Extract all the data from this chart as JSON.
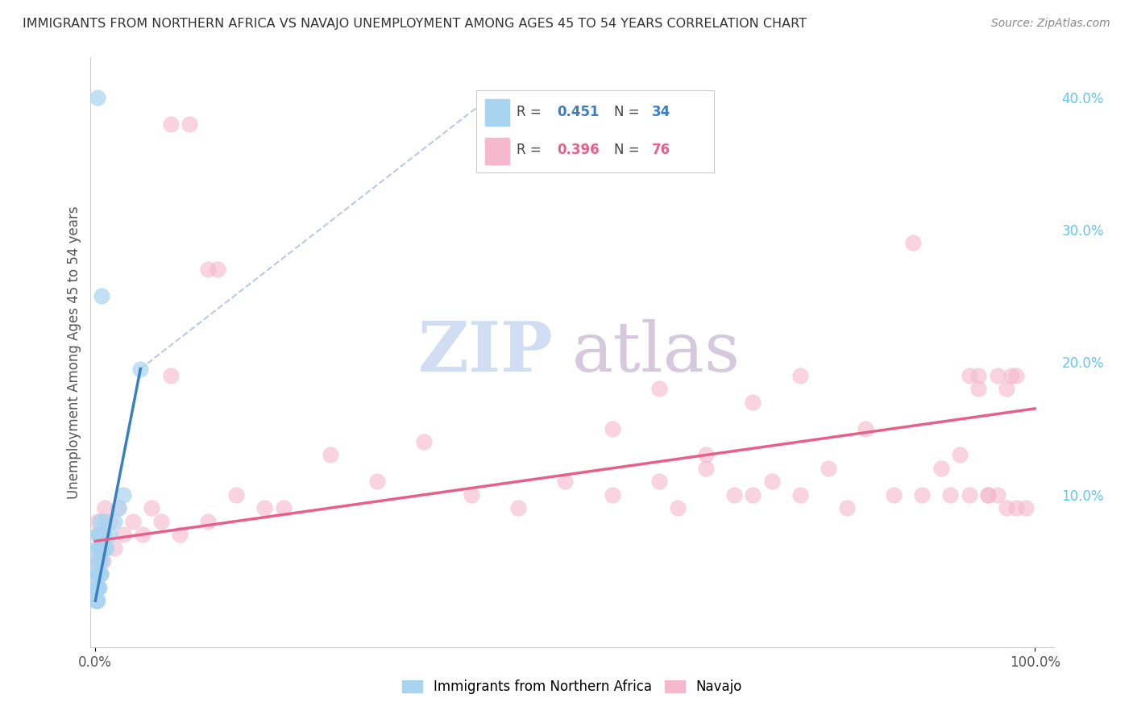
{
  "title": "IMMIGRANTS FROM NORTHERN AFRICA VS NAVAJO UNEMPLOYMENT AMONG AGES 45 TO 54 YEARS CORRELATION CHART",
  "source": "Source: ZipAtlas.com",
  "ylabel": "Unemployment Among Ages 45 to 54 years",
  "watermark_zip": "ZIP",
  "watermark_atlas": "atlas",
  "legend_r1": "R = 0.451",
  "legend_n1": "N = 34",
  "legend_r2": "R = 0.396",
  "legend_n2": "N = 76",
  "color_blue": "#a8d4f0",
  "color_pink": "#f5b8cc",
  "color_blue_line": "#3a7fc1",
  "color_pink_line": "#e8608a",
  "color_dashed": "#aabcde",
  "background_color": "#ffffff",
  "ytick_color": "#5bc8f5",
  "title_color": "#333333",
  "ylabel_color": "#555555"
}
